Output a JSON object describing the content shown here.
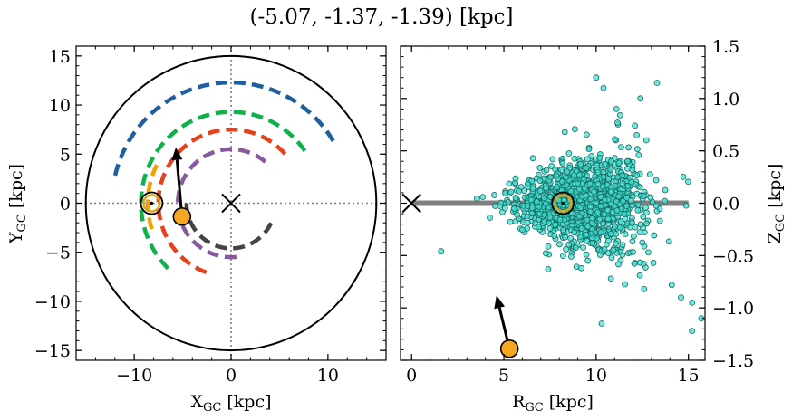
{
  "figure": {
    "title": "(-5.07, -1.37, -1.39) [kpc]"
  },
  "chart_data": [
    {
      "type": "scatter",
      "panel": "left",
      "xlabel": "X",
      "xlabel_sub": "GC",
      "xlabel_unit": " [kpc]",
      "ylabel": "Y",
      "ylabel_sub": "GC",
      "ylabel_unit": " [kpc]",
      "xlim": [
        -16,
        16
      ],
      "ylim": [
        -16,
        16
      ],
      "xticks": [
        -10,
        0,
        10
      ],
      "yticks": [
        -15,
        -10,
        -5,
        0,
        5,
        10,
        15
      ],
      "xtick_labels": [
        "−10",
        "0",
        "10"
      ],
      "ytick_labels": [
        "−15",
        "−10",
        "−5",
        "0",
        "5",
        "10",
        "15"
      ],
      "grid": false,
      "boundary_circle": {
        "center": [
          0,
          0
        ],
        "radius": 15,
        "color": "#000000"
      },
      "reference_lines": {
        "x": 0,
        "y": 0,
        "style": "dotted",
        "color": "#808080"
      },
      "galactic_center": {
        "x": 0,
        "y": 0,
        "marker": "x"
      },
      "sun": {
        "x": -8.2,
        "y": 0.0,
        "color": "#DAA520"
      },
      "object": {
        "x": -5.07,
        "y": -1.37,
        "color": "#F5A623"
      },
      "velocity_arrow": {
        "from": [
          -5.07,
          -1.37
        ],
        "to": [
          -5.7,
          5.7
        ],
        "color": "#000000"
      },
      "spiral_arms": [
        {
          "color": "#F5A000",
          "radius": 8.6,
          "theta_start_deg": 153,
          "theta_end_deg": 200
        },
        {
          "color": "#1F5FA0",
          "radius": 12.3,
          "theta_start_deg": 31,
          "theta_end_deg": 167
        },
        {
          "color": "#0FB24A",
          "radius": 9.3,
          "theta_start_deg": 35,
          "theta_end_deg": 226
        },
        {
          "color": "#E8401C",
          "radius": 7.5,
          "theta_start_deg": 42,
          "theta_end_deg": 250
        },
        {
          "color": "#875A9E",
          "radius": 5.5,
          "theta_start_deg": 50,
          "theta_end_deg": 280
        },
        {
          "color": "#444444",
          "radius": 4.6,
          "theta_start_deg": 180,
          "theta_end_deg": 340
        }
      ]
    },
    {
      "type": "scatter",
      "panel": "right",
      "xlabel": "R",
      "xlabel_sub": "GC",
      "xlabel_unit": " [kpc]",
      "ylabel": "Z",
      "ylabel_sub": "GC",
      "ylabel_unit": " [kpc]",
      "ylabel_position": "right",
      "xlim": [
        -0.6,
        15.9
      ],
      "ylim": [
        -1.5,
        1.5
      ],
      "xticks": [
        0,
        5,
        10,
        15
      ],
      "yticks": [
        -1.5,
        -1.0,
        -0.5,
        0.0,
        0.5,
        1.0,
        1.5
      ],
      "xtick_labels": [
        "0",
        "5",
        "10",
        "15"
      ],
      "ytick_labels": [
        "−1.5",
        "−1.0",
        "−0.5",
        "0.0",
        "0.5",
        "1.0",
        "1.5"
      ],
      "grid": false,
      "disk_line": {
        "x": [
          0,
          15
        ],
        "y": 0,
        "color": "#808080"
      },
      "galactic_center": {
        "x": 0,
        "y": 0,
        "marker": "x"
      },
      "sun": {
        "x": 8.2,
        "y": 0.0,
        "color": "#DAA520"
      },
      "object": {
        "x": 5.3,
        "y": -1.39,
        "color": "#F5A623"
      },
      "velocity_arrow": {
        "from": [
          5.3,
          -1.39
        ],
        "to": [
          4.6,
          -0.88
        ],
        "color": "#000000"
      },
      "stars": {
        "color": "#40E0D0",
        "edgecolor": "#1a6a64",
        "count": 1400,
        "r_mean": 9.2,
        "r_std": 1.7,
        "z_std_base": 0.05,
        "z_std_growth": 0.028,
        "outliers": [
          [
            10.0,
            1.2
          ],
          [
            11.1,
            0.9
          ],
          [
            13.3,
            1.15
          ],
          [
            12.4,
            1.0
          ],
          [
            10.3,
            -1.15
          ],
          [
            15.7,
            -1.1
          ],
          [
            15.2,
            -0.95
          ],
          [
            14.6,
            -0.9
          ],
          [
            12.6,
            -0.82
          ],
          [
            1.6,
            -0.46
          ],
          [
            10.4,
            1.1
          ],
          [
            11.3,
            0.84
          ],
          [
            8.3,
            0.68
          ],
          [
            10.8,
            -0.72
          ],
          [
            13.1,
            -0.57
          ],
          [
            14.1,
            -0.78
          ],
          [
            15.2,
            -1.22
          ],
          [
            12.1,
            0.74
          ],
          [
            9.2,
            -0.62
          ],
          [
            7.4,
            -0.63
          ]
        ]
      }
    }
  ]
}
